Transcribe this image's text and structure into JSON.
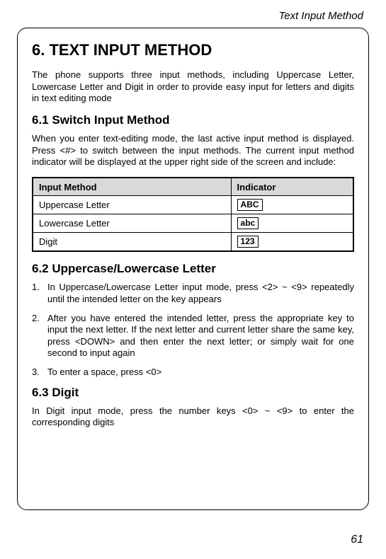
{
  "running_header": "Text Input Method",
  "title": "6. TEXT INPUT METHOD",
  "intro": "The phone supports three input methods, including Uppercase Letter, Lowercase Letter and Digit in order to provide easy input for letters and digits in text editing mode",
  "section61": {
    "heading": "6.1 Switch Input Method",
    "para": "When you enter text-editing mode, the last active input method is displayed. Press <#> to switch between the input methods. The current input method indicator will be displayed at the upper right side of the screen and include:",
    "table": {
      "headers": [
        "Input Method",
        "Indicator"
      ],
      "rows": [
        {
          "method": "Uppercase Letter",
          "indicator": "ABC"
        },
        {
          "method": "Lowercase Letter",
          "indicator": "abc"
        },
        {
          "method": "Digit",
          "indicator": "123"
        }
      ]
    }
  },
  "section62": {
    "heading": "6.2 Uppercase/Lowercase Letter",
    "items": [
      "In Uppercase/Lowercase Letter input mode, press <2> ~ <9> repeatedly until the intended letter on the key appears",
      "After you have entered the intended letter, press the appropriate key to input the next letter. If the next letter and current letter share the same key, press <DOWN> and then enter the next letter; or simply wait for one second to input again",
      "To enter a space, press <0>"
    ]
  },
  "section63": {
    "heading": "6.3 Digit",
    "para": "In Digit input mode, press the number keys <0> ~ <9> to enter the corresponding digits"
  },
  "page_number": "61"
}
